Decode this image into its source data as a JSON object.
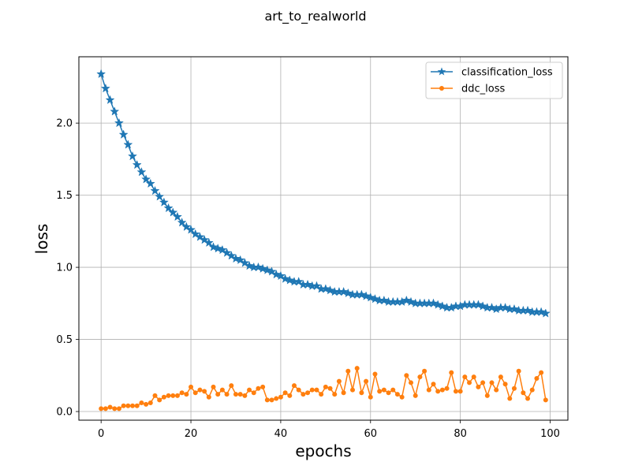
{
  "chart_data": {
    "type": "line",
    "title": "art_to_realworld",
    "xlabel": "epochs",
    "ylabel": "loss",
    "xlim": [
      -4.95,
      103.95
    ],
    "ylim": [
      -0.06,
      2.46
    ],
    "xticks": [
      0,
      20,
      40,
      60,
      80,
      100
    ],
    "yticks": [
      0.0,
      0.5,
      1.0,
      1.5,
      2.0
    ],
    "xtick_labels": [
      "0",
      "20",
      "40",
      "60",
      "80",
      "100"
    ],
    "ytick_labels": [
      "0.0",
      "0.5",
      "1.0",
      "1.5",
      "2.0"
    ],
    "grid": true,
    "legend_position": "top-right",
    "x": [
      0,
      1,
      2,
      3,
      4,
      5,
      6,
      7,
      8,
      9,
      10,
      11,
      12,
      13,
      14,
      15,
      16,
      17,
      18,
      19,
      20,
      21,
      22,
      23,
      24,
      25,
      26,
      27,
      28,
      29,
      30,
      31,
      32,
      33,
      34,
      35,
      36,
      37,
      38,
      39,
      40,
      41,
      42,
      43,
      44,
      45,
      46,
      47,
      48,
      49,
      50,
      51,
      52,
      53,
      54,
      55,
      56,
      57,
      58,
      59,
      60,
      61,
      62,
      63,
      64,
      65,
      66,
      67,
      68,
      69,
      70,
      71,
      72,
      73,
      74,
      75,
      76,
      77,
      78,
      79,
      80,
      81,
      82,
      83,
      84,
      85,
      86,
      87,
      88,
      89,
      90,
      91,
      92,
      93,
      94,
      95,
      96,
      97,
      98,
      99
    ],
    "series": [
      {
        "name": "classification_loss",
        "color": "#1f77b4",
        "marker": "star",
        "values": [
          2.34,
          2.24,
          2.16,
          2.08,
          2.0,
          1.92,
          1.85,
          1.77,
          1.71,
          1.66,
          1.61,
          1.58,
          1.53,
          1.49,
          1.45,
          1.41,
          1.38,
          1.35,
          1.31,
          1.28,
          1.26,
          1.23,
          1.21,
          1.19,
          1.17,
          1.14,
          1.13,
          1.12,
          1.1,
          1.08,
          1.06,
          1.05,
          1.03,
          1.01,
          1.0,
          1.0,
          0.99,
          0.98,
          0.97,
          0.95,
          0.94,
          0.92,
          0.91,
          0.9,
          0.9,
          0.88,
          0.88,
          0.87,
          0.87,
          0.85,
          0.85,
          0.84,
          0.83,
          0.83,
          0.83,
          0.82,
          0.81,
          0.81,
          0.81,
          0.8,
          0.79,
          0.78,
          0.77,
          0.77,
          0.76,
          0.76,
          0.76,
          0.76,
          0.77,
          0.76,
          0.75,
          0.75,
          0.75,
          0.75,
          0.75,
          0.74,
          0.73,
          0.72,
          0.72,
          0.73,
          0.73,
          0.74,
          0.74,
          0.74,
          0.74,
          0.73,
          0.72,
          0.72,
          0.71,
          0.72,
          0.72,
          0.71,
          0.71,
          0.7,
          0.7,
          0.7,
          0.69,
          0.69,
          0.69,
          0.68
        ]
      },
      {
        "name": "ddc_loss",
        "color": "#ff7f0e",
        "marker": "circle",
        "values": [
          0.02,
          0.02,
          0.03,
          0.02,
          0.02,
          0.04,
          0.04,
          0.04,
          0.04,
          0.06,
          0.05,
          0.06,
          0.11,
          0.08,
          0.1,
          0.11,
          0.11,
          0.11,
          0.13,
          0.12,
          0.17,
          0.13,
          0.15,
          0.14,
          0.1,
          0.17,
          0.12,
          0.15,
          0.12,
          0.18,
          0.12,
          0.12,
          0.11,
          0.15,
          0.13,
          0.16,
          0.17,
          0.08,
          0.08,
          0.09,
          0.1,
          0.13,
          0.11,
          0.18,
          0.15,
          0.12,
          0.13,
          0.15,
          0.15,
          0.12,
          0.17,
          0.16,
          0.12,
          0.21,
          0.13,
          0.28,
          0.15,
          0.3,
          0.13,
          0.21,
          0.1,
          0.26,
          0.14,
          0.15,
          0.13,
          0.15,
          0.12,
          0.1,
          0.25,
          0.2,
          0.11,
          0.24,
          0.28,
          0.15,
          0.19,
          0.14,
          0.15,
          0.16,
          0.27,
          0.14,
          0.14,
          0.24,
          0.2,
          0.24,
          0.17,
          0.2,
          0.11,
          0.2,
          0.15,
          0.24,
          0.19,
          0.09,
          0.16,
          0.28,
          0.13,
          0.09,
          0.15,
          0.23,
          0.27,
          0.08
        ]
      }
    ]
  }
}
